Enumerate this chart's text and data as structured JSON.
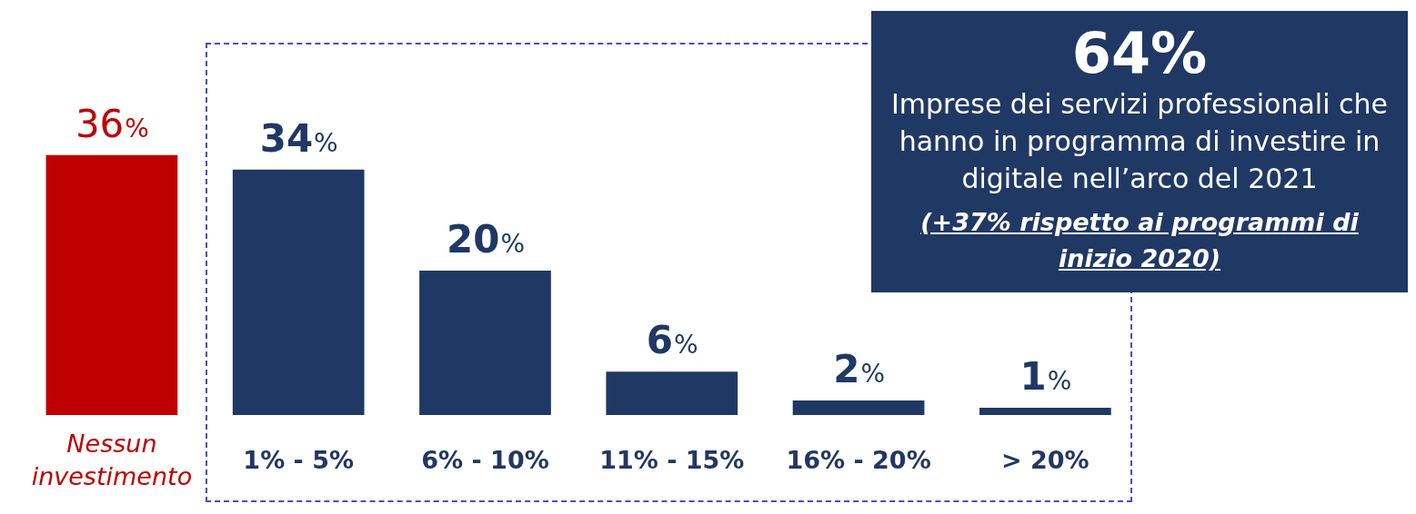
{
  "chart_data": {
    "type": "bar",
    "categories": [
      "Nessun investimento",
      "1% - 5%",
      "6% - 10%",
      "11% - 15%",
      "16% - 20%",
      "> 20%"
    ],
    "values": [
      36,
      34,
      20,
      6,
      2,
      1
    ],
    "colors": [
      "#c00000",
      "#203864",
      "#203864",
      "#203864",
      "#203864",
      "#203864"
    ],
    "value_labels": [
      "36%",
      "34%",
      "20%",
      "6%",
      "2%",
      "1%"
    ],
    "annotations": [
      "64%",
      "Imprese dei servizi professionali che hanno in programma di investire in digitale nell’arco del 2021",
      "(+37% rispetto ai programmi di inizio 2020)"
    ]
  }
}
